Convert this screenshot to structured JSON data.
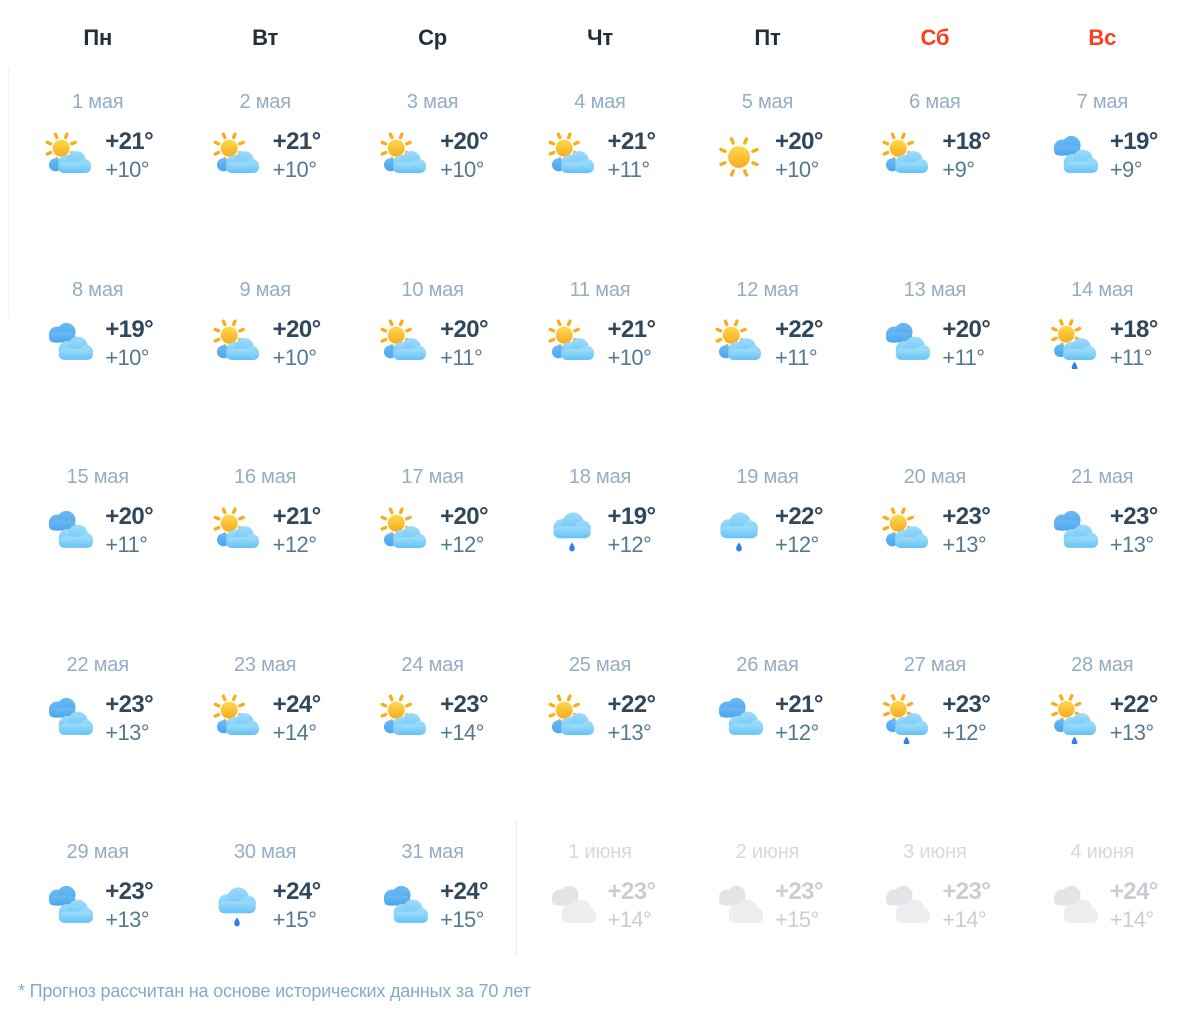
{
  "weekdays": [
    {
      "label": "Пн",
      "weekend": false
    },
    {
      "label": "Вт",
      "weekend": false
    },
    {
      "label": "Ср",
      "weekend": false
    },
    {
      "label": "Чт",
      "weekend": false
    },
    {
      "label": "Пт",
      "weekend": false
    },
    {
      "label": "Сб",
      "weekend": true
    },
    {
      "label": "Вс",
      "weekend": true
    }
  ],
  "days": [
    {
      "date": "1 мая",
      "icon": "sun-cloud",
      "high": "+21°",
      "low": "+10°",
      "muted": false
    },
    {
      "date": "2 мая",
      "icon": "sun-cloud",
      "high": "+21°",
      "low": "+10°",
      "muted": false
    },
    {
      "date": "3 мая",
      "icon": "sun-cloud",
      "high": "+20°",
      "low": "+10°",
      "muted": false
    },
    {
      "date": "4 мая",
      "icon": "sun-cloud",
      "high": "+21°",
      "low": "+11°",
      "muted": false
    },
    {
      "date": "5 мая",
      "icon": "sun",
      "high": "+20°",
      "low": "+10°",
      "muted": false
    },
    {
      "date": "6 мая",
      "icon": "sun-cloud",
      "high": "+18°",
      "low": "+9°",
      "muted": false
    },
    {
      "date": "7 мая",
      "icon": "clouds",
      "high": "+19°",
      "low": "+9°",
      "muted": false
    },
    {
      "date": "8 мая",
      "icon": "clouds",
      "high": "+19°",
      "low": "+10°",
      "muted": false
    },
    {
      "date": "9 мая",
      "icon": "sun-cloud",
      "high": "+20°",
      "low": "+10°",
      "muted": false
    },
    {
      "date": "10 мая",
      "icon": "sun-cloud",
      "high": "+20°",
      "low": "+11°",
      "muted": false
    },
    {
      "date": "11 мая",
      "icon": "sun-cloud",
      "high": "+21°",
      "low": "+10°",
      "muted": false
    },
    {
      "date": "12 мая",
      "icon": "sun-cloud",
      "high": "+22°",
      "low": "+11°",
      "muted": false
    },
    {
      "date": "13 мая",
      "icon": "clouds",
      "high": "+20°",
      "low": "+11°",
      "muted": false
    },
    {
      "date": "14 мая",
      "icon": "sun-cloud-rain",
      "high": "+18°",
      "low": "+11°",
      "muted": false
    },
    {
      "date": "15 мая",
      "icon": "clouds",
      "high": "+20°",
      "low": "+11°",
      "muted": false
    },
    {
      "date": "16 мая",
      "icon": "sun-cloud",
      "high": "+21°",
      "low": "+12°",
      "muted": false
    },
    {
      "date": "17 мая",
      "icon": "sun-cloud",
      "high": "+20°",
      "low": "+12°",
      "muted": false
    },
    {
      "date": "18 мая",
      "icon": "cloud-rain",
      "high": "+19°",
      "low": "+12°",
      "muted": false
    },
    {
      "date": "19 мая",
      "icon": "cloud-rain",
      "high": "+22°",
      "low": "+12°",
      "muted": false
    },
    {
      "date": "20 мая",
      "icon": "sun-cloud",
      "high": "+23°",
      "low": "+13°",
      "muted": false
    },
    {
      "date": "21 мая",
      "icon": "clouds",
      "high": "+23°",
      "low": "+13°",
      "muted": false
    },
    {
      "date": "22 мая",
      "icon": "clouds",
      "high": "+23°",
      "low": "+13°",
      "muted": false
    },
    {
      "date": "23 мая",
      "icon": "sun-cloud",
      "high": "+24°",
      "low": "+14°",
      "muted": false
    },
    {
      "date": "24 мая",
      "icon": "sun-cloud",
      "high": "+23°",
      "low": "+14°",
      "muted": false
    },
    {
      "date": "25 мая",
      "icon": "sun-cloud",
      "high": "+22°",
      "low": "+13°",
      "muted": false
    },
    {
      "date": "26 мая",
      "icon": "clouds",
      "high": "+21°",
      "low": "+12°",
      "muted": false
    },
    {
      "date": "27 мая",
      "icon": "sun-cloud-rain",
      "high": "+23°",
      "low": "+12°",
      "muted": false
    },
    {
      "date": "28 мая",
      "icon": "sun-cloud-rain",
      "high": "+22°",
      "low": "+13°",
      "muted": false
    },
    {
      "date": "29 мая",
      "icon": "clouds",
      "high": "+23°",
      "low": "+13°",
      "muted": false
    },
    {
      "date": "30 мая",
      "icon": "cloud-rain",
      "high": "+24°",
      "low": "+15°",
      "muted": false
    },
    {
      "date": "31 мая",
      "icon": "clouds",
      "high": "+24°",
      "low": "+15°",
      "muted": false
    },
    {
      "date": "1 июня",
      "icon": "clouds-gray",
      "high": "+23°",
      "low": "+14°",
      "muted": true
    },
    {
      "date": "2 июня",
      "icon": "clouds-gray",
      "high": "+23°",
      "low": "+15°",
      "muted": true
    },
    {
      "date": "3 июня",
      "icon": "clouds-gray",
      "high": "+23°",
      "low": "+14°",
      "muted": true
    },
    {
      "date": "4 июня",
      "icon": "clouds-gray",
      "high": "+24°",
      "low": "+14°",
      "muted": true
    }
  ],
  "footnote": "* Прогноз рассчитан на основе исторических данных за 70 лет",
  "colors": {
    "weekday_dark": "#222f3b",
    "weekday_red": "#fb3f1c",
    "date": "#93adc6",
    "temp_high": "#31475b",
    "temp_low": "#547a92",
    "muted_date": "#d6dadd",
    "muted_temp": "#c8ced4",
    "footnote": "#84abc6",
    "sun_yellow": "#f8ad1b",
    "cloud_blue": "#64c2f6",
    "rain_drop": "#2f80ed"
  }
}
